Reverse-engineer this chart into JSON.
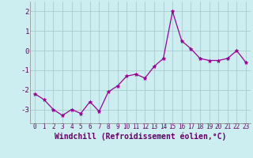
{
  "x": [
    0,
    1,
    2,
    3,
    4,
    5,
    6,
    7,
    8,
    9,
    10,
    11,
    12,
    13,
    14,
    15,
    16,
    17,
    18,
    19,
    20,
    21,
    22,
    23
  ],
  "y": [
    -2.2,
    -2.5,
    -3.0,
    -3.3,
    -3.0,
    -3.2,
    -2.6,
    -3.1,
    -2.1,
    -1.8,
    -1.3,
    -1.2,
    -1.4,
    -0.8,
    -0.4,
    2.0,
    0.5,
    0.1,
    -0.4,
    -0.5,
    -0.5,
    -0.4,
    0.0,
    -0.6
  ],
  "line_color": "#990099",
  "marker": "*",
  "marker_size": 3.5,
  "bg_color": "#cceef0",
  "grid_color": "#aacccc",
  "xlabel": "Windchill (Refroidissement éolien,°C)",
  "xlabel_fontsize": 7,
  "xlabel_color": "#660066",
  "tick_color": "#660066",
  "tick_fontsize": 5.5,
  "ytick_fontsize": 6.5,
  "yticks": [
    -3,
    -2,
    -1,
    0,
    1,
    2
  ],
  "xticks": [
    0,
    1,
    2,
    3,
    4,
    5,
    6,
    7,
    8,
    9,
    10,
    11,
    12,
    13,
    14,
    15,
    16,
    17,
    18,
    19,
    20,
    21,
    22,
    23
  ],
  "ylim": [
    -3.7,
    2.5
  ],
  "xlim": [
    -0.5,
    23.5
  ]
}
